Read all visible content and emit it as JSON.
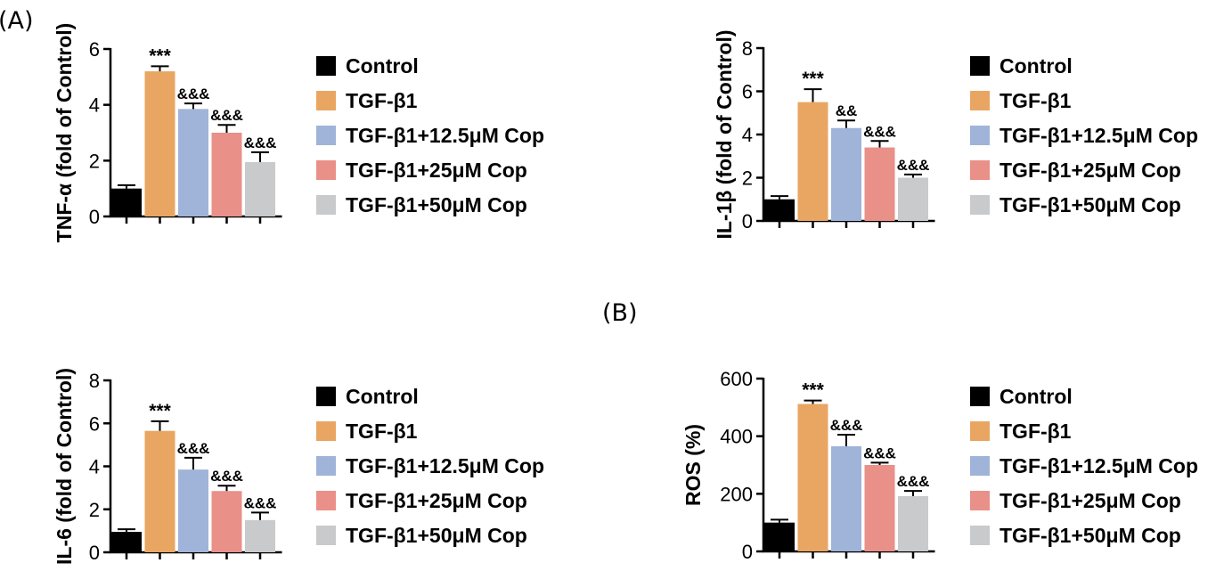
{
  "figure": {
    "panel_labels": [
      "(A)",
      "(B)"
    ],
    "legend": [
      {
        "label": "Control",
        "color": "#000000"
      },
      {
        "label": "TGF-β1",
        "color": "#E9A662"
      },
      {
        "label": "TGF-β1+12.5μM Cop",
        "color": "#9FB4D8"
      },
      {
        "label": "TGF-β1+25μM Cop",
        "color": "#E99089"
      },
      {
        "label": "TGF-β1+50μM Cop",
        "color": "#C8CACC"
      }
    ]
  },
  "chart_data": [
    {
      "type": "bar",
      "ylabel": "TNF-α (fold of Control)",
      "ylim": [
        0,
        6
      ],
      "yticks": [
        0,
        2,
        4,
        6
      ],
      "categories": [
        "Control",
        "TGF-β1",
        "TGF-β1+12.5μM Cop",
        "TGF-β1+25μM Cop",
        "TGF-β1+50μM Cop"
      ],
      "values": [
        1.0,
        5.2,
        3.85,
        3.0,
        1.95
      ],
      "errors": [
        0.12,
        0.18,
        0.2,
        0.28,
        0.35
      ],
      "annotations": [
        "",
        "***",
        "&&&",
        "&&&",
        "&&&"
      ]
    },
    {
      "type": "bar",
      "ylabel": "IL-1β (fold of Control)",
      "ylim": [
        0,
        8
      ],
      "yticks": [
        0,
        2,
        4,
        6,
        8
      ],
      "categories": [
        "Control",
        "TGF-β1",
        "TGF-β1+12.5μM Cop",
        "TGF-β1+25μM Cop",
        "TGF-β1+50μM Cop"
      ],
      "values": [
        1.0,
        5.5,
        4.3,
        3.4,
        2.0
      ],
      "errors": [
        0.15,
        0.6,
        0.35,
        0.3,
        0.15
      ],
      "annotations": [
        "",
        "***",
        "&&",
        "&&&",
        "&&&"
      ]
    },
    {
      "type": "bar",
      "ylabel": "IL-6 (fold of Control)",
      "ylim": [
        0,
        8
      ],
      "yticks": [
        0,
        2,
        4,
        6,
        8
      ],
      "categories": [
        "Control",
        "TGF-β1",
        "TGF-β1+12.5μM Cop",
        "TGF-β1+25μM Cop",
        "TGF-β1+50μM Cop"
      ],
      "values": [
        0.95,
        5.65,
        3.85,
        2.85,
        1.5
      ],
      "errors": [
        0.12,
        0.45,
        0.55,
        0.25,
        0.35
      ],
      "annotations": [
        "",
        "***",
        "&&&",
        "&&&",
        "&&&"
      ]
    },
    {
      "type": "bar",
      "ylabel": "ROS (%)",
      "ylim": [
        0,
        600
      ],
      "yticks": [
        0,
        200,
        400,
        600
      ],
      "categories": [
        "Control",
        "TGF-β1",
        "TGF-β1+12.5μM Cop",
        "TGF-β1+25μM Cop",
        "TGF-β1+50μM Cop"
      ],
      "values": [
        100,
        512,
        365,
        300,
        192
      ],
      "errors": [
        10,
        12,
        40,
        8,
        18
      ],
      "annotations": [
        "",
        "***",
        "&&&",
        "&&&",
        "&&&"
      ]
    }
  ]
}
